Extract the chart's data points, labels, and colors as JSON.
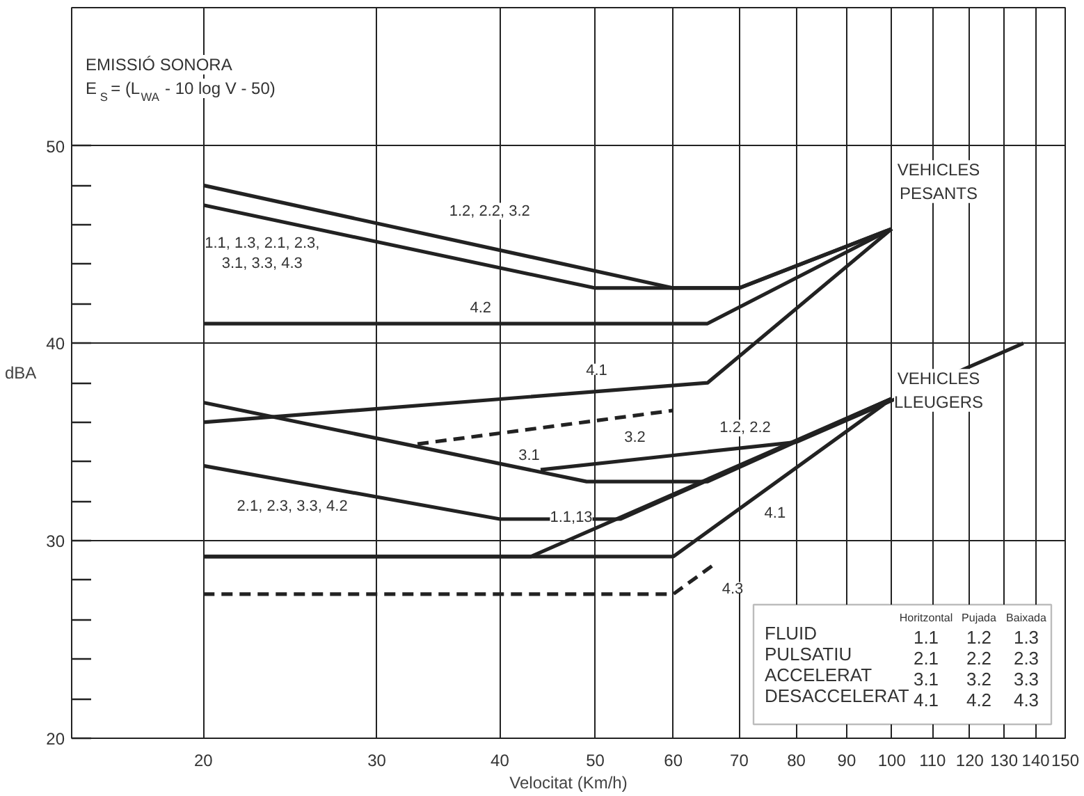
{
  "chart_data": {
    "type": "line",
    "title": "EMISSIÓ SONORA",
    "subtitle": "E$_{S}$= (L$_{WA}$ - 10 log V - 50)",
    "xlabel": "Velocitat (Km/h)",
    "ylabel": "dBA",
    "log": "x",
    "grid": true,
    "line_style": "solid",
    "marker": "none",
    "xlim": [
      14.7,
      150
    ],
    "xticks": [
      20,
      30,
      40,
      50,
      60,
      70,
      80,
      90,
      100,
      110,
      120,
      130,
      140,
      150
    ],
    "ylim": [
      20,
      57
    ],
    "yticks": [
      20,
      {
        "value": 22,
        "label": null
      },
      {
        "value": 24,
        "label": null
      },
      {
        "value": 26,
        "label": null
      },
      {
        "value": 28,
        "label": null
      },
      30,
      {
        "value": 32,
        "label": null
      },
      {
        "value": 34,
        "label": null
      },
      {
        "value": 36,
        "label": null
      },
      {
        "value": 38,
        "label": null
      },
      40,
      {
        "value": 42,
        "label": null
      },
      {
        "value": 44,
        "label": null
      },
      {
        "value": 46,
        "label": null
      },
      {
        "value": 48,
        "label": null
      },
      50
    ],
    "series": [
      {
        "name": "1.2, 2.2, 3.2",
        "color": "#222222",
        "x": [
          20,
          60,
          70,
          100
        ],
        "values": [
          48,
          42.8,
          42.8,
          45.8
        ]
      },
      {
        "name": "1.1, 1.3, 2.1, 2.3,\n3.1, 3.3, 4.3",
        "color": "#222222",
        "x": [
          20,
          50,
          70,
          100
        ],
        "values": [
          47,
          42.8,
          42.8,
          45.8
        ]
      },
      {
        "name": "4.2",
        "color": "#222222",
        "x": [
          20,
          65,
          100
        ],
        "values": [
          41,
          41,
          45.8
        ]
      },
      {
        "name": "4.1",
        "color": "#222222",
        "x": [
          20,
          65,
          100
        ],
        "values": [
          36,
          38,
          45.8
        ]
      },
      {
        "name": "3.1",
        "color": "#222222",
        "x": [
          20,
          49,
          65,
          100
        ],
        "values": [
          37,
          33,
          33,
          37.2
        ]
      },
      {
        "name": "1.2, 2.2",
        "color": "#222222",
        "x": [
          44,
          80,
          136
        ],
        "values": [
          33.6,
          35,
          40
        ]
      },
      {
        "name": "3.2",
        "color": "#222222",
        "x": [
          33,
          60
        ],
        "values": [
          34.9,
          36.6
        ],
        "line_style": "dashed"
      },
      {
        "name": "2.1, 2.3, 3.3, 4.2",
        "color": "#222222",
        "x": [
          20,
          40,
          53,
          100
        ],
        "values": [
          33.8,
          31.1,
          31.1,
          37.2
        ]
      },
      {
        "name": "1.1,13",
        "color": "#222222",
        "x": [
          20,
          43,
          100
        ],
        "values": [
          29.2,
          29.2,
          37.2
        ]
      },
      {
        "name": "4.1",
        "color": "#222222",
        "x": [
          20,
          60,
          100
        ],
        "values": [
          29.2,
          29.2,
          37.2
        ]
      },
      {
        "name": "4.3",
        "color": "#222222",
        "x": [
          20,
          60,
          66
        ],
        "values": [
          27.3,
          27.3,
          28.8
        ],
        "line_style": "dashed"
      }
    ],
    "annotations": [
      "VEHICLES\nPESANTS",
      "VEHICLES\nLLEUGERS",
      "Horitzontal Pujada Baixada",
      "FLUID 1.1 1.2 1.3",
      "PULSATIU 2.1 2.2 2.3",
      "ACCELERAT 3.1 3.2 3.3",
      "DESACCELERAT 4.1 4.2 4.3"
    ]
  }
}
